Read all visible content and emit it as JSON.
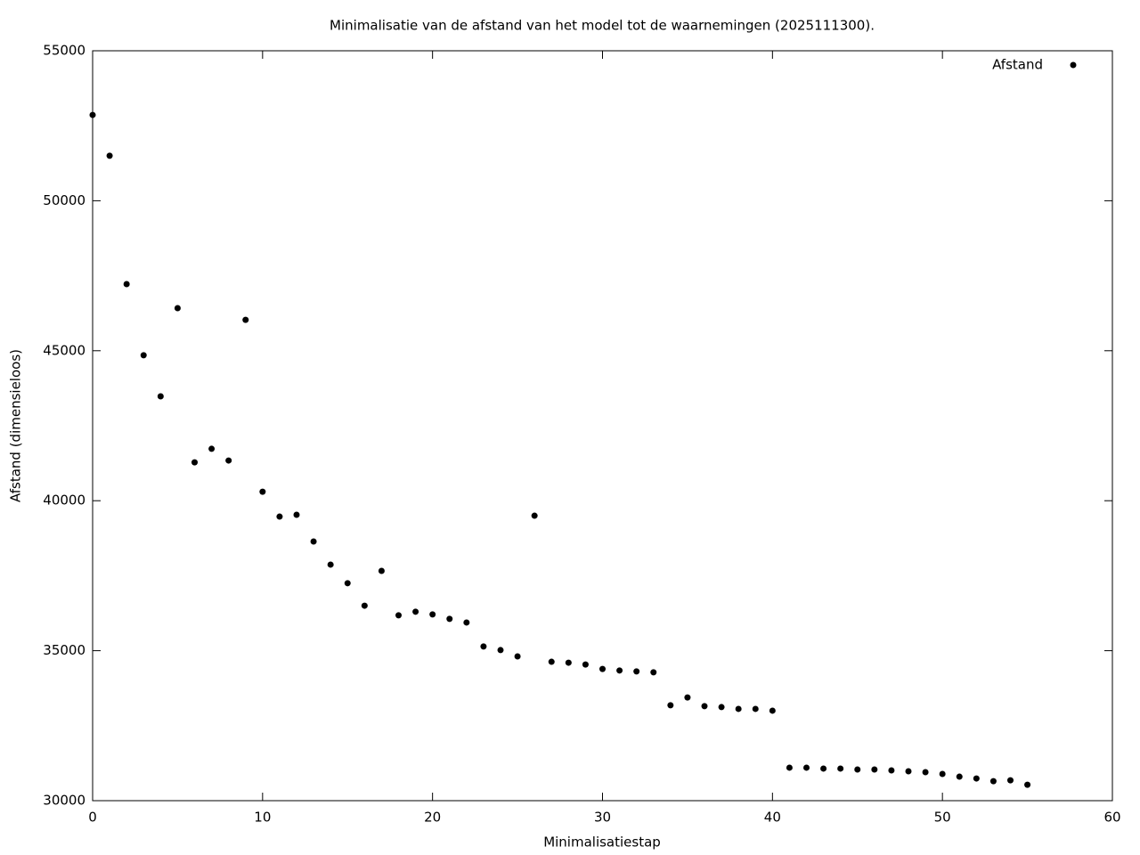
{
  "chart_data": {
    "type": "scatter",
    "title": "Minimalisatie van de afstand van het model tot de waarnemingen (2025111300).",
    "x_label": "Minimalisatiestap",
    "y_label": "Afstand (dimensieloos)",
    "x": [
      0,
      1,
      2,
      3,
      4,
      5,
      6,
      7,
      8,
      9,
      10,
      11,
      12,
      13,
      14,
      15,
      16,
      17,
      18,
      19,
      20,
      21,
      22,
      23,
      24,
      25,
      26,
      27,
      28,
      29,
      30,
      31,
      32,
      33,
      34,
      35,
      36,
      37,
      38,
      39,
      40,
      41,
      42,
      43,
      44,
      45,
      46,
      47,
      48,
      49,
      50,
      51,
      52,
      53,
      54,
      55
    ],
    "series": [
      {
        "name": "Afstand",
        "color": "#000000",
        "values": [
          52860,
          51500,
          47220,
          44850,
          43480,
          46420,
          41280,
          41730,
          41340,
          46030,
          40300,
          39470,
          39530,
          38640,
          37870,
          37250,
          36500,
          37660,
          36180,
          36300,
          36210,
          36060,
          35940,
          35140,
          35020,
          34810,
          39500,
          34630,
          34600,
          34540,
          34390,
          34340,
          34310,
          34280,
          33180,
          33440,
          33150,
          33120,
          33060,
          33060,
          33000,
          31100,
          31100,
          31070,
          31070,
          31040,
          31040,
          31010,
          30980,
          30950,
          30890,
          30800,
          30740,
          30650,
          30680,
          30530
        ]
      }
    ],
    "xlim": [
      0,
      60
    ],
    "xticks": [
      0,
      10,
      20,
      30,
      40,
      50,
      60
    ],
    "ylim": [
      30000,
      55000
    ],
    "yticks": [
      30000,
      35000,
      40000,
      45000,
      50000,
      55000
    ],
    "legend": "top right",
    "grid": false
  }
}
